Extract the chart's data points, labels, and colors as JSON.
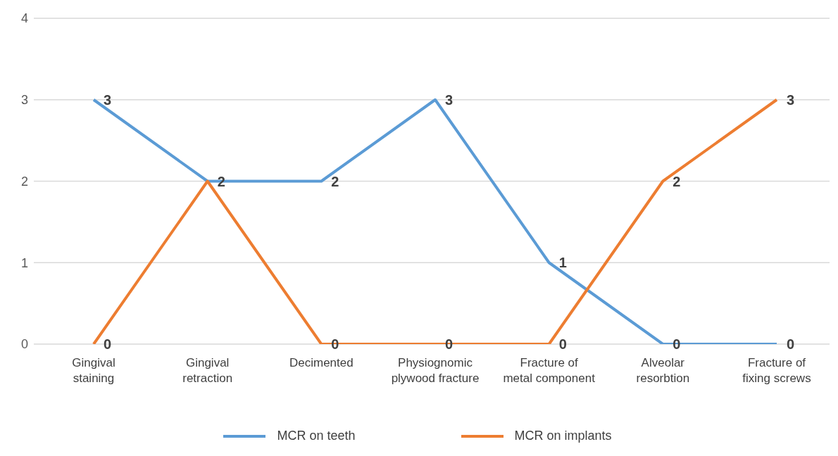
{
  "chart_data": {
    "type": "line",
    "categories": [
      "Gingival staining",
      "Gingival retraction",
      "Decimented",
      "Physiognomic plywood fracture",
      "Fracture of metal component",
      "Alveolar resorbtion",
      "Fracture of fixing screws"
    ],
    "series": [
      {
        "name": "MCR on teeth",
        "color": "#5b9bd5",
        "values": [
          3,
          2,
          2,
          3,
          1,
          0,
          0
        ],
        "value_labels": [
          "3",
          "2",
          "2",
          "3",
          "1",
          "0",
          "0"
        ]
      },
      {
        "name": "MCR on implants",
        "color": "#ed7d31",
        "values": [
          0,
          2,
          0,
          0,
          0,
          2,
          3
        ],
        "value_labels": [
          "0",
          null,
          "0",
          "0",
          "0",
          "2",
          "3"
        ]
      }
    ],
    "ylim": [
      0,
      4
    ],
    "yticks": [
      0,
      1,
      2,
      3,
      4
    ],
    "grid": "y",
    "legend": "bottom",
    "marker": "none",
    "line_style": "solid"
  }
}
